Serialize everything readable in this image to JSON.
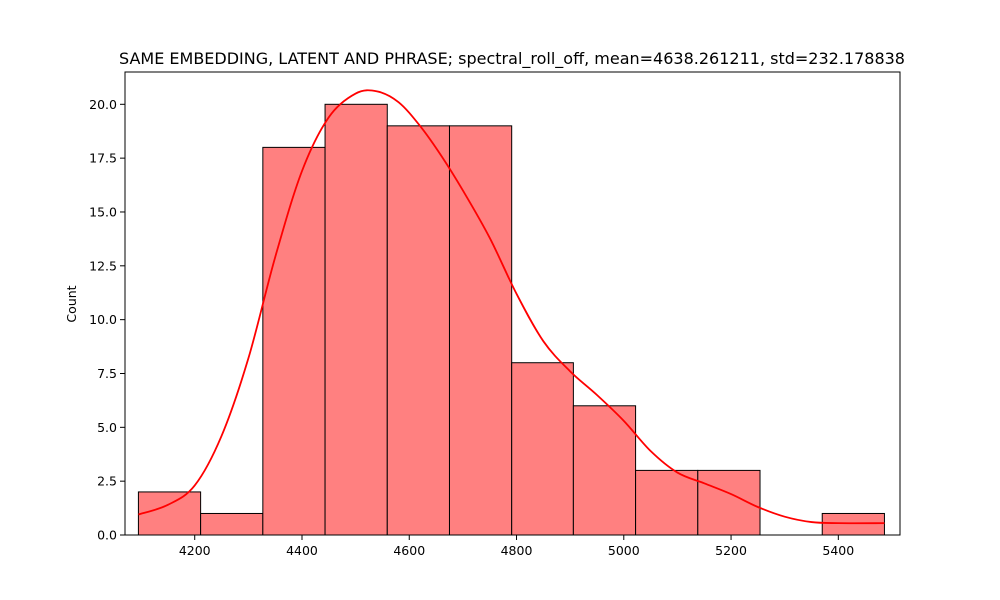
{
  "chart_data": {
    "type": "bar",
    "title": "SAME EMBEDDING, LATENT AND PHRASE; spectral_roll_off, mean=4638.261211, std=232.178838",
    "xlabel": "",
    "ylabel": "Count",
    "xlim": [
      4070,
      5515
    ],
    "ylim": [
      0,
      21.5
    ],
    "x_ticks": [
      4200,
      4400,
      4600,
      4800,
      5000,
      5200,
      5400
    ],
    "x_tick_labels": [
      "4200",
      "4400",
      "4600",
      "4800",
      "5000",
      "5200",
      "5400"
    ],
    "y_ticks": [
      0,
      2.5,
      5,
      7.5,
      10,
      12.5,
      15,
      17.5,
      20
    ],
    "y_tick_labels": [
      "0.0",
      "2.5",
      "5.0",
      "7.5",
      "10.0",
      "12.5",
      "15.0",
      "17.5",
      "20.0"
    ],
    "bins": [
      {
        "x0": 4095,
        "x1": 4211,
        "count": 2
      },
      {
        "x0": 4211,
        "x1": 4327,
        "count": 1
      },
      {
        "x0": 4327,
        "x1": 4443,
        "count": 18
      },
      {
        "x0": 4443,
        "x1": 4559,
        "count": 20
      },
      {
        "x0": 4559,
        "x1": 4675,
        "count": 19
      },
      {
        "x0": 4675,
        "x1": 4791,
        "count": 19
      },
      {
        "x0": 4791,
        "x1": 4906,
        "count": 8
      },
      {
        "x0": 4906,
        "x1": 5022,
        "count": 6
      },
      {
        "x0": 5022,
        "x1": 5138,
        "count": 3
      },
      {
        "x0": 5138,
        "x1": 5254,
        "count": 3
      },
      {
        "x0": 5254,
        "x1": 5370,
        "count": 0
      },
      {
        "x0": 5370,
        "x1": 5486,
        "count": 1
      }
    ],
    "kde": {
      "x": [
        4095,
        4150,
        4200,
        4250,
        4300,
        4350,
        4400,
        4450,
        4500,
        4540,
        4580,
        4620,
        4660,
        4700,
        4750,
        4800,
        4850,
        4900,
        4950,
        5000,
        5050,
        5100,
        5150,
        5200,
        5250,
        5300,
        5350,
        5400,
        5486
      ],
      "y": [
        0.95,
        1.4,
        2.3,
        4.6,
        8.2,
        12.9,
        16.9,
        19.4,
        20.5,
        20.6,
        20.1,
        19.0,
        17.6,
        16.0,
        13.8,
        11.2,
        9.0,
        7.6,
        6.5,
        5.3,
        3.9,
        2.9,
        2.4,
        1.9,
        1.3,
        0.85,
        0.6,
        0.55,
        0.55
      ]
    },
    "colors": {
      "bar_fill": "#ff8080",
      "bar_edge": "#000000",
      "kde_line": "#ff0000"
    },
    "grid": false,
    "legend": "none"
  }
}
